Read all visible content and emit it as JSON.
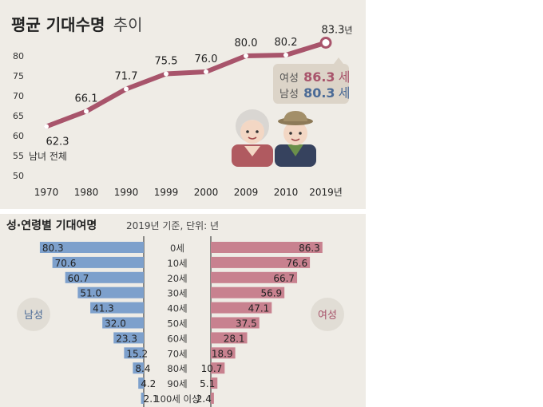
{
  "chart_data": [
    {
      "type": "line",
      "title_bold": "평균 기대수명",
      "title_light": "추이",
      "x": [
        "1970",
        "1980",
        "1990",
        "1999",
        "2000",
        "2009",
        "2010",
        "2019년"
      ],
      "series": [
        {
          "name": "남녀 전체",
          "values": [
            62.3,
            66.1,
            71.7,
            75.5,
            76.0,
            80.0,
            80.2,
            83.3
          ]
        }
      ],
      "last_value_unit": "년",
      "yticks": [
        "80",
        "75",
        "70",
        "65",
        "60",
        "55",
        "50"
      ],
      "ylim": [
        50,
        83
      ],
      "line_color": "#a8546b",
      "annotation": {
        "female_label": "여성",
        "female_value": "86.3",
        "male_label": "남성",
        "male_value": "80.3",
        "unit": "세",
        "female_color": "#a8546b",
        "male_color": "#4a6a96"
      }
    },
    {
      "type": "bar",
      "title": "성·연령별 기대여명",
      "subtitle": "2019년 기준, 단위: 년",
      "categories": [
        "0세",
        "10세",
        "20세",
        "30세",
        "40세",
        "50세",
        "60세",
        "70세",
        "80세",
        "90세",
        "100세 이상"
      ],
      "series": [
        {
          "name": "남성",
          "values": [
            80.3,
            70.6,
            60.7,
            51.0,
            41.3,
            32.0,
            23.3,
            15.2,
            8.4,
            4.2,
            2.1
          ]
        },
        {
          "name": "여성",
          "values": [
            86.3,
            76.6,
            66.7,
            56.9,
            47.1,
            37.5,
            28.1,
            18.9,
            10.7,
            5.1,
            2.4
          ]
        }
      ],
      "male_color": "#7da0cc",
      "female_color": "#c8818f"
    }
  ]
}
